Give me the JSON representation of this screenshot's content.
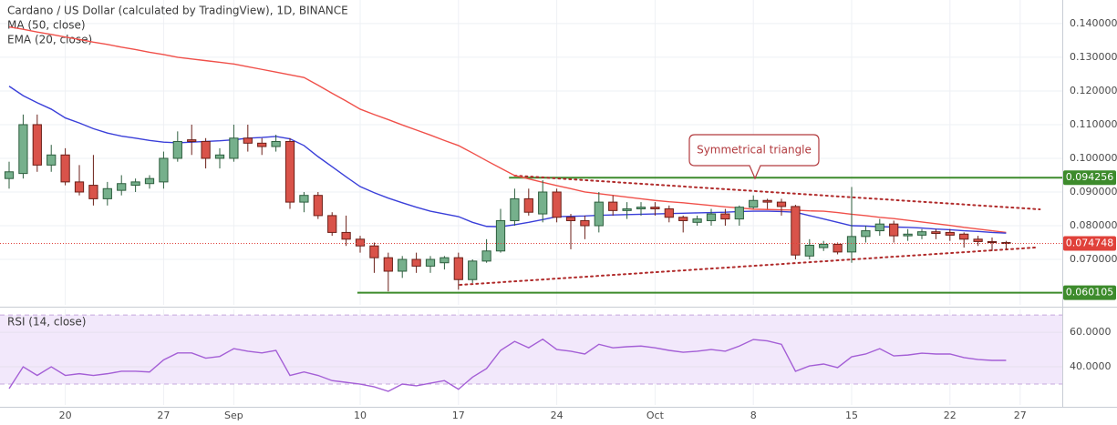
{
  "chart_data": [
    {
      "type": "candlestick",
      "title": "Cardano / US Dollar (calculated by TradingView), 1D, BINANCE",
      "open": [
        0.094,
        0.0955,
        0.11,
        0.098,
        0.101,
        0.093,
        0.092,
        0.088,
        0.0905,
        0.092,
        0.0925,
        0.093,
        0.1,
        0.1055,
        0.105,
        0.1,
        0.1,
        0.106,
        0.1045,
        0.1035,
        0.105,
        0.087,
        0.089,
        0.083,
        0.078,
        0.076,
        0.074,
        0.0705,
        0.0665,
        0.07,
        0.068,
        0.069,
        0.0705,
        0.064,
        0.0695,
        0.0725,
        0.0815,
        0.088,
        0.0835,
        0.09,
        0.0825,
        0.0815,
        0.08,
        0.087,
        0.0845,
        0.085,
        0.0855,
        0.085,
        0.0825,
        0.081,
        0.0815,
        0.0835,
        0.082,
        0.0855,
        0.0875,
        0.087,
        0.0857,
        0.071,
        0.0735,
        0.0745,
        0.0722,
        0.0768,
        0.0785,
        0.0805,
        0.077,
        0.0772,
        0.0782,
        0.078,
        0.0775,
        0.076,
        0.0753,
        0.075
      ],
      "high": [
        0.099,
        0.113,
        0.113,
        0.104,
        0.103,
        0.098,
        0.101,
        0.093,
        0.095,
        0.094,
        0.095,
        0.102,
        0.108,
        0.11,
        0.106,
        0.103,
        0.11,
        0.11,
        0.106,
        0.107,
        0.106,
        0.09,
        0.09,
        0.084,
        0.083,
        0.077,
        0.075,
        0.072,
        0.071,
        0.072,
        0.071,
        0.071,
        0.072,
        0.07,
        0.076,
        0.085,
        0.091,
        0.091,
        0.0935,
        0.091,
        0.0835,
        0.083,
        0.09,
        0.089,
        0.087,
        0.087,
        0.087,
        0.086,
        0.083,
        0.083,
        0.085,
        0.085,
        0.086,
        0.089,
        0.088,
        0.088,
        0.0862,
        0.076,
        0.0755,
        0.075,
        0.0915,
        0.08,
        0.082,
        0.0815,
        0.079,
        0.079,
        0.079,
        0.079,
        0.078,
        0.077,
        0.0765,
        0.0755
      ],
      "low": [
        0.091,
        0.094,
        0.096,
        0.096,
        0.092,
        0.089,
        0.086,
        0.086,
        0.089,
        0.09,
        0.091,
        0.091,
        0.099,
        0.101,
        0.097,
        0.097,
        0.099,
        0.102,
        0.101,
        0.102,
        0.085,
        0.084,
        0.082,
        0.077,
        0.074,
        0.072,
        0.066,
        0.0605,
        0.0645,
        0.066,
        0.066,
        0.067,
        0.061,
        0.063,
        0.069,
        0.072,
        0.08,
        0.083,
        0.081,
        0.081,
        0.073,
        0.076,
        0.078,
        0.083,
        0.082,
        0.083,
        0.083,
        0.081,
        0.078,
        0.08,
        0.08,
        0.08,
        0.08,
        0.085,
        0.085,
        0.083,
        0.07,
        0.07,
        0.0725,
        0.0715,
        0.069,
        0.075,
        0.077,
        0.075,
        0.0755,
        0.076,
        0.076,
        0.0755,
        0.0735,
        0.074,
        0.0725,
        0.073
      ],
      "close": [
        0.096,
        0.11,
        0.098,
        0.101,
        0.093,
        0.09,
        0.088,
        0.091,
        0.0925,
        0.093,
        0.094,
        0.1,
        0.105,
        0.105,
        0.1,
        0.101,
        0.106,
        0.1045,
        0.1035,
        0.105,
        0.087,
        0.089,
        0.083,
        0.078,
        0.076,
        0.074,
        0.0705,
        0.0665,
        0.07,
        0.068,
        0.07,
        0.0705,
        0.064,
        0.0695,
        0.0725,
        0.0815,
        0.088,
        0.084,
        0.09,
        0.0825,
        0.0815,
        0.08,
        0.087,
        0.0845,
        0.085,
        0.0855,
        0.085,
        0.0825,
        0.0815,
        0.082,
        0.0835,
        0.082,
        0.0855,
        0.0875,
        0.087,
        0.0857,
        0.0713,
        0.0742,
        0.0745,
        0.0722,
        0.0768,
        0.0785,
        0.0805,
        0.077,
        0.0775,
        0.0782,
        0.0777,
        0.0772,
        0.076,
        0.0753,
        0.075,
        0.074748
      ],
      "up_color": "#76b08c",
      "down_color": "#d9534a",
      "overlays": [
        {
          "name": "MA (50, close)",
          "color": "#f0504a",
          "values": [
            0.139,
            0.1383,
            0.1375,
            0.1368,
            0.136,
            0.1353,
            0.1345,
            0.1338,
            0.133,
            0.1323,
            0.1315,
            0.1308,
            0.13,
            0.1295,
            0.129,
            0.1285,
            0.128,
            0.1272,
            0.1264,
            0.1256,
            0.1248,
            0.124,
            0.1217,
            0.1193,
            0.117,
            0.1146,
            0.113,
            0.1115,
            0.1099,
            0.1084,
            0.1069,
            0.1053,
            0.1038,
            0.1016,
            0.0993,
            0.0971,
            0.0949,
            0.0939,
            0.0929,
            0.0919,
            0.091,
            0.09,
            0.0895,
            0.089,
            0.0885,
            0.088,
            0.0875,
            0.0871,
            0.0868,
            0.0864,
            0.086,
            0.0856,
            0.0853,
            0.0849,
            0.0848,
            0.0847,
            0.0846,
            0.0844,
            0.0843,
            0.0839,
            0.0834,
            0.083,
            0.0825,
            0.0821,
            0.0816,
            0.0811,
            0.0806,
            0.0801,
            0.0795,
            0.079,
            0.0785,
            0.078
          ]
        },
        {
          "name": "EMA (20, close)",
          "color": "#3a3fd9",
          "values": [
            0.1214,
            0.1186,
            0.1165,
            0.1146,
            0.112,
            0.1105,
            0.1088,
            0.1075,
            0.1066,
            0.106,
            0.1053,
            0.1048,
            0.1046,
            0.1048,
            0.105,
            0.1052,
            0.1055,
            0.106,
            0.1062,
            0.1065,
            0.1058,
            0.1038,
            0.1005,
            0.0975,
            0.0945,
            0.0916,
            0.0898,
            0.0882,
            0.0868,
            0.0855,
            0.0843,
            0.0835,
            0.0827,
            0.081,
            0.0798,
            0.0797,
            0.0803,
            0.081,
            0.0818,
            0.0827,
            0.0828,
            0.0829,
            0.0831,
            0.0832,
            0.0833,
            0.0834,
            0.0835,
            0.0836,
            0.0837,
            0.0838,
            0.0839,
            0.084,
            0.0842,
            0.0843,
            0.0843,
            0.0842,
            0.084,
            0.083,
            0.082,
            0.081,
            0.08,
            0.0799,
            0.0797,
            0.0796,
            0.0795,
            0.0793,
            0.079,
            0.0788,
            0.0785,
            0.0783,
            0.078,
            0.0778
          ]
        }
      ],
      "xlim": [
        -0.65,
        75
      ],
      "xticks": [
        {
          "value": 4,
          "label": "20"
        },
        {
          "value": 11,
          "label": "27"
        },
        {
          "value": 16,
          "label": "Sep"
        },
        {
          "value": 25,
          "label": "10"
        },
        {
          "value": 32,
          "label": "17"
        },
        {
          "value": 39,
          "label": "24"
        },
        {
          "value": 46,
          "label": "Oct"
        },
        {
          "value": 53,
          "label": "8"
        },
        {
          "value": 60,
          "label": "15"
        },
        {
          "value": 67,
          "label": "22"
        },
        {
          "value": 72,
          "label": "27"
        }
      ],
      "ylim": [
        0.0565,
        0.147
      ],
      "yticks": [
        {
          "value": 0.07,
          "label": "0.070000"
        },
        {
          "value": 0.08,
          "label": "0.080000"
        },
        {
          "value": 0.09,
          "label": "0.090000"
        },
        {
          "value": 0.1,
          "label": "0.100000"
        },
        {
          "value": 0.11,
          "label": "0.110000"
        },
        {
          "value": 0.12,
          "label": "0.120000"
        },
        {
          "value": 0.13,
          "label": "0.130000"
        },
        {
          "value": 0.14,
          "label": "0.140000"
        }
      ],
      "levels": [
        {
          "value": 0.094256,
          "color": "#3d8b2c"
        },
        {
          "value": 0.060105,
          "color": "#3d8b2c"
        }
      ],
      "last_price_color": "#e0413a",
      "trendlines": [
        {
          "points": [
            [
              36.0,
              0.09486
            ],
            [
              73.4,
              0.08486
            ]
          ],
          "color": "#b02a2a"
        },
        {
          "points": [
            [
              32.1,
              0.06243
            ],
            [
              73.05,
              0.07351
            ]
          ],
          "color": "#b02a2a"
        }
      ],
      "annotation": "Symmetrical triangle",
      "grid": true
    },
    {
      "type": "line",
      "series": [
        {
          "name": "RSI (14, close)",
          "color": "#a45fd6",
          "values": [
            27.4,
            40,
            35,
            40,
            35,
            36,
            35,
            36,
            37.4,
            37.4,
            37,
            44,
            48,
            48,
            45,
            46,
            50.5,
            49,
            48,
            49.5,
            35,
            37,
            35,
            32,
            31,
            30,
            28.4,
            25.8,
            30,
            29,
            30.5,
            32,
            27,
            34,
            39,
            49.5,
            54.7,
            51,
            56,
            50,
            49,
            47.4,
            53,
            51,
            51.6,
            52,
            51,
            49.5,
            48.4,
            49,
            50,
            49,
            52,
            55.8,
            55,
            53,
            37.4,
            40.5,
            41.6,
            39.5,
            45.8,
            47.4,
            50.5,
            46.3,
            46.8,
            47.9,
            47.4,
            47.4,
            45.3,
            44.2,
            43.7,
            43.7
          ]
        }
      ],
      "ylim": [
        17.9,
        73.2
      ],
      "yticks": [
        {
          "value": 40,
          "label": "40.0000"
        },
        {
          "value": 60,
          "label": "60.0000"
        }
      ],
      "bands": [
        30,
        70
      ],
      "band_color": "#f2e8fb",
      "grid": true
    }
  ]
}
